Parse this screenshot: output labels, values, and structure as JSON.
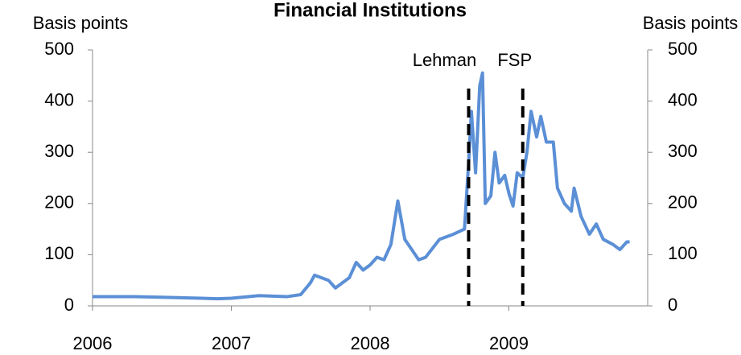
{
  "chart_data": {
    "type": "line",
    "title": "Financial Institutions",
    "y_label": "Basis points",
    "y2_label": "Basis points",
    "x": [
      2006.0,
      2006.3,
      2006.5,
      2006.9,
      2007.0,
      2007.2,
      2007.4,
      2007.5,
      2007.57,
      2007.6,
      2007.7,
      2007.75,
      2007.85,
      2007.9,
      2007.95,
      2008.0,
      2008.05,
      2008.1,
      2008.15,
      2008.2,
      2008.25,
      2008.3,
      2008.35,
      2008.4,
      2008.5,
      2008.6,
      2008.68,
      2008.71,
      2008.73,
      2008.76,
      2008.79,
      2008.81,
      2008.83,
      2008.87,
      2008.9,
      2008.93,
      2008.97,
      2009.0,
      2009.03,
      2009.06,
      2009.1,
      2009.13,
      2009.16,
      2009.2,
      2009.23,
      2009.27,
      2009.32,
      2009.35,
      2009.4,
      2009.45,
      2009.47,
      2009.52,
      2009.58,
      2009.63,
      2009.68,
      2009.75,
      2009.8,
      2009.85,
      2009.87
    ],
    "series": [
      {
        "color": "#5b8fd6",
        "values": [
          18,
          18,
          17,
          14,
          15,
          20,
          18,
          22,
          45,
          60,
          50,
          35,
          55,
          85,
          70,
          80,
          95,
          90,
          120,
          205,
          130,
          110,
          90,
          95,
          130,
          140,
          150,
          280,
          380,
          260,
          430,
          455,
          200,
          215,
          300,
          240,
          255,
          220,
          195,
          260,
          250,
          300,
          380,
          330,
          370,
          320,
          320,
          230,
          200,
          185,
          230,
          175,
          140,
          160,
          130,
          120,
          110,
          125,
          125
        ]
      }
    ],
    "xlim": [
      2006,
      2010
    ],
    "xticks": [
      2006,
      2007,
      2008,
      2009
    ],
    "ylim": [
      0,
      500
    ],
    "yticks": [
      0,
      100,
      200,
      300,
      400,
      500
    ],
    "y2lim": [
      0,
      500
    ],
    "y2ticks": [
      0,
      100,
      200,
      300,
      400,
      500
    ],
    "annotations": [
      {
        "text": "Lehman",
        "x": 2008.71
      },
      {
        "text": "FSP",
        "x": 2009.1
      }
    ]
  }
}
